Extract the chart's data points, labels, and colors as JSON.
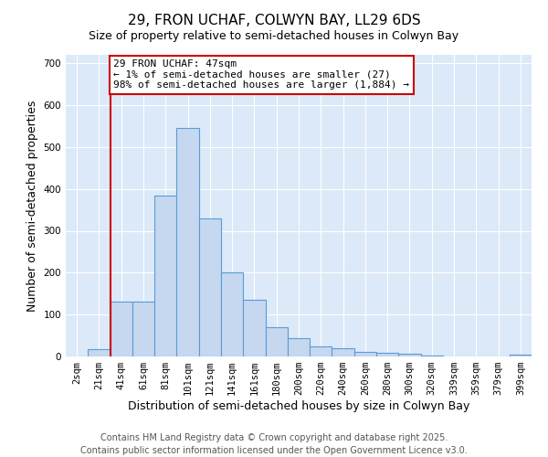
{
  "title": "29, FRON UCHAF, COLWYN BAY, LL29 6DS",
  "subtitle": "Size of property relative to semi-detached houses in Colwyn Bay",
  "xlabel": "Distribution of semi-detached houses by size in Colwyn Bay",
  "ylabel": "Number of semi-detached properties",
  "categories": [
    "2sqm",
    "21sqm",
    "41sqm",
    "61sqm",
    "81sqm",
    "101sqm",
    "121sqm",
    "141sqm",
    "161sqm",
    "180sqm",
    "200sqm",
    "220sqm",
    "240sqm",
    "260sqm",
    "280sqm",
    "300sqm",
    "320sqm",
    "339sqm",
    "359sqm",
    "379sqm",
    "399sqm"
  ],
  "values": [
    0,
    18,
    130,
    130,
    385,
    545,
    330,
    200,
    135,
    70,
    43,
    25,
    20,
    12,
    8,
    6,
    3,
    1,
    1,
    0,
    4
  ],
  "bar_color": "#c5d8f0",
  "bar_edge_color": "#5b9bd5",
  "vline_index": 2,
  "vline_color": "#cc0000",
  "annotation_text": "29 FRON UCHAF: 47sqm\n← 1% of semi-detached houses are smaller (27)\n98% of semi-detached houses are larger (1,884) →",
  "annotation_box_color": "#ffffff",
  "annotation_box_edge": "#cc0000",
  "ylim": [
    0,
    720
  ],
  "background_color": "#dce9f8",
  "footer_line1": "Contains HM Land Registry data © Crown copyright and database right 2025.",
  "footer_line2": "Contains public sector information licensed under the Open Government Licence v3.0.",
  "title_fontsize": 11,
  "axis_fontsize": 9,
  "tick_fontsize": 7.5,
  "footer_fontsize": 7,
  "annotation_fontsize": 8
}
